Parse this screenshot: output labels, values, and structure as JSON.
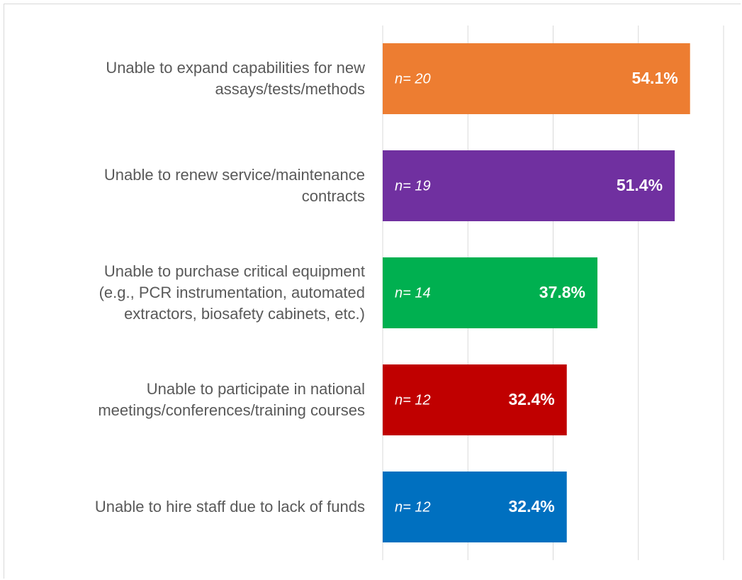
{
  "chart_data": {
    "type": "bar",
    "orientation": "horizontal",
    "categories": [
      "Unable to expand capabilities for new\nassays/tests/methods",
      "Unable to renew service/maintenance\ncontracts",
      "Unable to purchase critical equipment\n(e.g., PCR instrumentation, automated\nextractors, biosafety cabinets, etc.)",
      "Unable to participate in national\nmeetings/conferences/training courses",
      "Unable to hire staff due to lack of funds"
    ],
    "values": [
      54.1,
      51.4,
      37.8,
      32.4,
      32.4
    ],
    "value_labels": [
      "54.1%",
      "51.4%",
      "37.8%",
      "32.4%",
      "32.4%"
    ],
    "annotations": [
      "n= 20",
      "n= 19",
      "n= 14",
      "n= 12",
      "n= 12"
    ],
    "colors": [
      "#ED7D31",
      "#7030A0",
      "#00B050",
      "#C00000",
      "#0070C0"
    ],
    "xlim": [
      0,
      60
    ],
    "xticks": [
      0,
      15,
      30,
      45,
      60
    ],
    "grid": true
  }
}
